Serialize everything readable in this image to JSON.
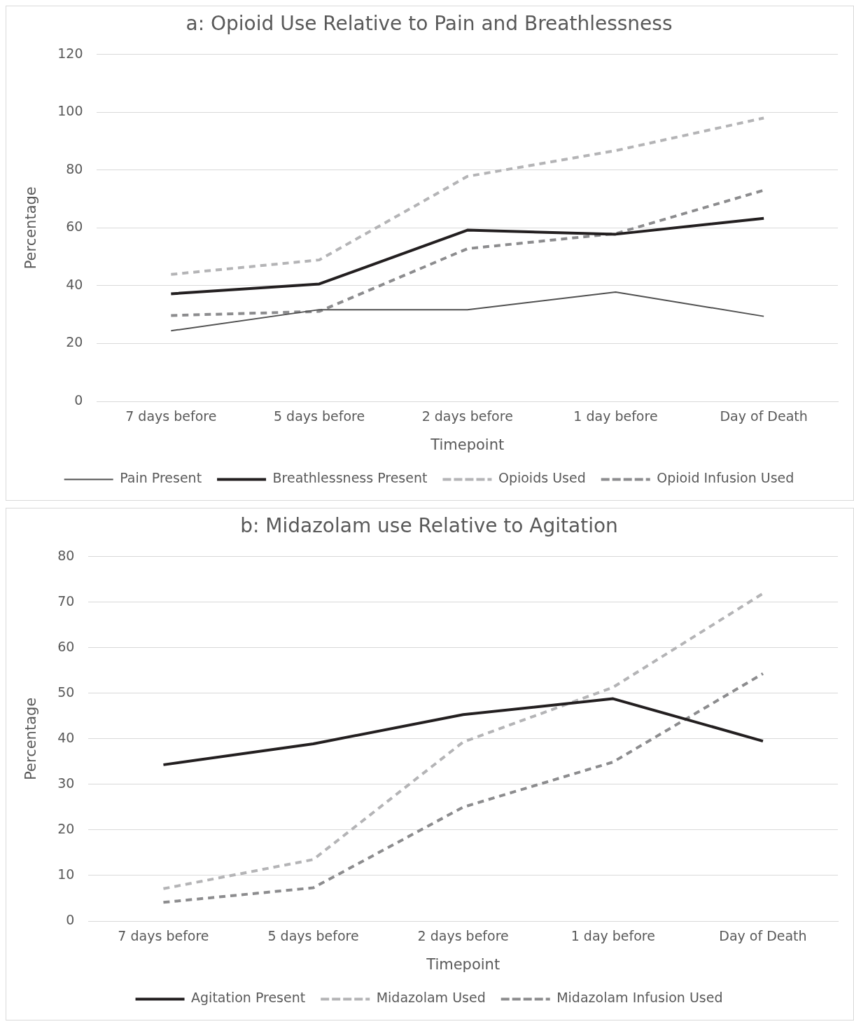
{
  "chart_data": [
    {
      "type": "line",
      "title": "a: Opioid Use Relative to Pain and Breathlessness",
      "xlabel": "Timepoint",
      "ylabel": "Percentage",
      "categories": [
        "7 days before",
        "5 days before",
        "2 days before",
        "1 day before",
        "Day of Death"
      ],
      "ylim": [
        0,
        120
      ],
      "yticks": [
        0,
        20,
        40,
        60,
        80,
        100,
        120
      ],
      "grid": "y",
      "legend": "bottom",
      "marker": "none",
      "series": [
        {
          "name": "Pain Present",
          "color": "#505050",
          "line_style": "solid",
          "values": [
            24.4,
            31.7,
            31.7,
            37.8,
            29.4
          ]
        },
        {
          "name": "Breathlessness Present",
          "color": "#231f20",
          "line_style": "solid",
          "values": [
            37.2,
            40.6,
            59.2,
            57.8,
            63.3
          ]
        },
        {
          "name": "Opioids Used",
          "color": "#b4b4b6",
          "line_style": "dashed",
          "values": [
            43.9,
            48.9,
            77.8,
            86.7,
            98
          ]
        },
        {
          "name": "Opioid Infusion Used",
          "color": "#8c8c8e",
          "line_style": "dashed",
          "values": [
            29.7,
            31.1,
            52.8,
            58,
            73
          ]
        }
      ]
    },
    {
      "type": "line",
      "title": "b: Midazolam use Relative to Agitation",
      "xlabel": "Timepoint",
      "ylabel": "Percentage",
      "categories": [
        "7 days before",
        "5 days before",
        "2 days before",
        "1 day before",
        "Day of Death"
      ],
      "ylim": [
        0,
        80
      ],
      "yticks": [
        0,
        10,
        20,
        30,
        40,
        50,
        60,
        70,
        80
      ],
      "grid": "y",
      "legend": "bottom",
      "marker": "none",
      "series": [
        {
          "name": "Agitation Present",
          "color": "#231f20",
          "line_style": "solid",
          "values": [
            34.3,
            38.9,
            45.3,
            48.8,
            39.5
          ]
        },
        {
          "name": "Midazolam Used",
          "color": "#b4b4b6",
          "line_style": "dashed",
          "values": [
            7.1,
            13.5,
            39.3,
            51.3,
            71.9
          ]
        },
        {
          "name": "Midazolam Infusion Used",
          "color": "#8c8c8e",
          "line_style": "dashed",
          "values": [
            4.1,
            7.3,
            25,
            34.9,
            54.3
          ]
        }
      ]
    }
  ]
}
